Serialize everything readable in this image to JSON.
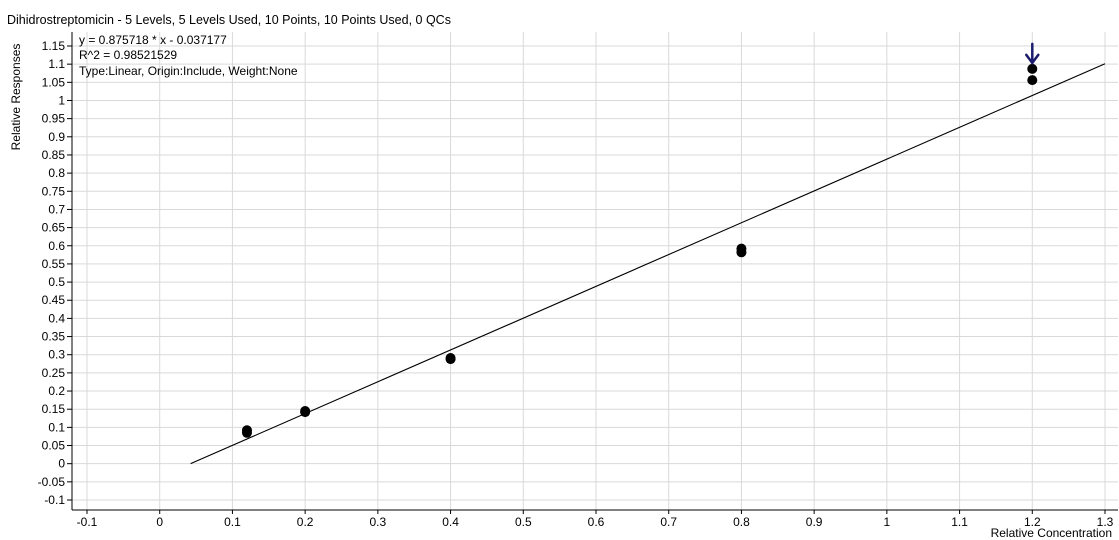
{
  "chart_data": {
    "type": "scatter",
    "title": "Dihidrostreptomicin - 5 Levels, 5 Levels Used, 10 Points, 10 Points Used, 0 QCs",
    "equation_lines": [
      "y = 0.875718 * x  - 0.037177",
      "R^2 = 0.98521529",
      "Type:Linear, Origin:Include, Weight:None"
    ],
    "xlabel": "Relative Concentration",
    "ylabel": "Relative Responses",
    "xlim": [
      -0.1,
      1.3
    ],
    "ylim": [
      -0.1,
      1.15
    ],
    "x_ticks": [
      "-0.1",
      "0",
      "0.1",
      "0.2",
      "0.3",
      "0.4",
      "0.5",
      "0.6",
      "0.7",
      "0.8",
      "0.9",
      "1",
      "1.1",
      "1.2",
      "1.3"
    ],
    "y_ticks": [
      "-0.1",
      "-0.05",
      "0",
      "0.05",
      "0.1",
      "0.15",
      "0.2",
      "0.25",
      "0.3",
      "0.35",
      "0.4",
      "0.45",
      "0.5",
      "0.55",
      "0.6",
      "0.65",
      "0.7",
      "0.75",
      "0.8",
      "0.85",
      "0.9",
      "0.95",
      "1",
      "1.05",
      "1.1",
      "1.15"
    ],
    "grid": true,
    "points": [
      {
        "x": 0.12,
        "y": 0.092
      },
      {
        "x": 0.12,
        "y": 0.085
      },
      {
        "x": 0.2,
        "y": 0.145
      },
      {
        "x": 0.2,
        "y": 0.142
      },
      {
        "x": 0.4,
        "y": 0.291
      },
      {
        "x": 0.4,
        "y": 0.288
      },
      {
        "x": 0.8,
        "y": 0.592
      },
      {
        "x": 0.8,
        "y": 0.582
      },
      {
        "x": 1.2,
        "y": 1.087
      },
      {
        "x": 1.2,
        "y": 1.056
      }
    ],
    "fit_line": {
      "slope": 0.875718,
      "intercept": -0.037177,
      "x_start": 0.0425,
      "x_end": 1.3
    },
    "marker": {
      "x": 1.2,
      "y": 1.087,
      "icon": "down-arrow-icon"
    },
    "colors": {
      "points": "#000000",
      "line": "#000000",
      "grid": "#d9d9d9",
      "marker": "#1c1c6e"
    }
  }
}
